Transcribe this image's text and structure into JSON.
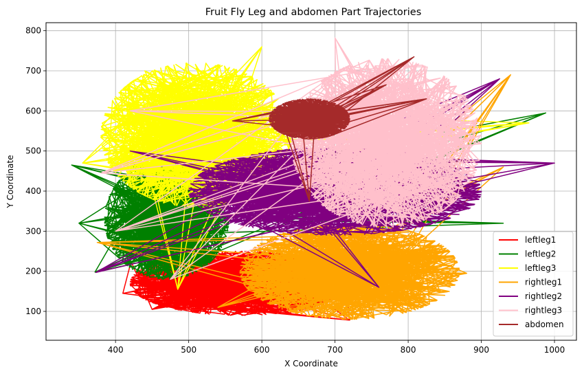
{
  "chart_data": {
    "type": "line",
    "title": "Fruit Fly Leg and abdomen Part Trajectories",
    "xlabel": "X Coordinate",
    "ylabel": "Y Coordinate",
    "xlim": [
      305,
      1030
    ],
    "ylim": [
      28,
      820
    ],
    "xticks": [
      400,
      500,
      600,
      700,
      800,
      900,
      1000
    ],
    "yticks": [
      100,
      200,
      300,
      400,
      500,
      600,
      700,
      800
    ],
    "grid": true,
    "legend_position": "lower-right",
    "series": [
      {
        "name": "leftleg1",
        "color": "#ff0000",
        "cluster": {
          "cx": 570,
          "cy": 170,
          "rx": 150,
          "ry": 80
        },
        "outliers": [
          [
            410,
            145
          ],
          [
            450,
            105
          ],
          [
            720,
            78
          ],
          [
            480,
            240
          ],
          [
            640,
            95
          ]
        ]
      },
      {
        "name": "leftleg2",
        "color": "#008000",
        "cluster": {
          "cx": 470,
          "cy": 330,
          "rx": 85,
          "ry": 150
        },
        "outliers": [
          [
            340,
            465
          ],
          [
            350,
            320
          ],
          [
            372,
            198
          ],
          [
            988,
            595
          ],
          [
            930,
            320
          ],
          [
            420,
            480
          ]
        ]
      },
      {
        "name": "leftleg3",
        "color": "#ffff00",
        "cluster": {
          "cx": 510,
          "cy": 540,
          "rx": 130,
          "ry": 180
        },
        "outliers": [
          [
            355,
            470
          ],
          [
            485,
            155
          ],
          [
            965,
            570
          ],
          [
            440,
            700
          ],
          [
            600,
            760
          ]
        ]
      },
      {
        "name": "rightleg1",
        "color": "#ffa500",
        "cluster": {
          "cx": 720,
          "cy": 200,
          "rx": 150,
          "ry": 120
        },
        "outliers": [
          [
            375,
            272
          ],
          [
            940,
            690
          ],
          [
            880,
            195
          ],
          [
            540,
            110
          ],
          [
            930,
            460
          ]
        ]
      },
      {
        "name": "rightleg2",
        "color": "#800080",
        "cluster": {
          "cx": 700,
          "cy": 400,
          "rx": 200,
          "ry": 110
        },
        "outliers": [
          [
            373,
            197
          ],
          [
            1000,
            470
          ],
          [
            925,
            680
          ],
          [
            420,
            500
          ],
          [
            760,
            160
          ]
        ]
      },
      {
        "name": "rightleg3",
        "color": "#ffc0cb",
        "cluster": {
          "cx": 770,
          "cy": 520,
          "rx": 130,
          "ry": 210
        },
        "outliers": [
          [
            380,
            445
          ],
          [
            400,
            300
          ],
          [
            700,
            782
          ],
          [
            420,
            600
          ],
          [
            475,
            180
          ]
        ]
      },
      {
        "name": "abdomen",
        "color": "#a52a2a",
        "cluster": {
          "cx": 665,
          "cy": 580,
          "rx": 55,
          "ry": 50
        },
        "outliers": [
          [
            808,
            735
          ],
          [
            770,
            665
          ],
          [
            825,
            630
          ],
          [
            665,
            375
          ],
          [
            560,
            575
          ]
        ]
      }
    ]
  }
}
